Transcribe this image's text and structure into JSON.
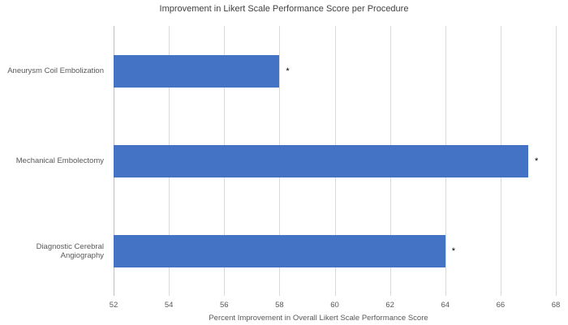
{
  "chart_data": {
    "type": "bar",
    "orientation": "horizontal",
    "title": "Improvement in Likert Scale Performance Score per Procedure",
    "categories": [
      "Aneurysm Coil Embolization",
      "Mechanical Embolectomy",
      "Diagnostic Cerebral Angiography"
    ],
    "values": [
      58,
      67,
      64
    ],
    "annotations": [
      "*",
      "*",
      "*"
    ],
    "xlabel": "Percent Improvement in Overall Likert Scale Performance Score",
    "ylabel": "",
    "xlim": [
      52,
      68
    ],
    "xticks": [
      52,
      54,
      56,
      58,
      60,
      62,
      64,
      66,
      68
    ],
    "bar_color": "#4472c4",
    "grid": true,
    "gridline_color": "#d9d9d9",
    "legend": "none",
    "background": "#ffffff"
  }
}
